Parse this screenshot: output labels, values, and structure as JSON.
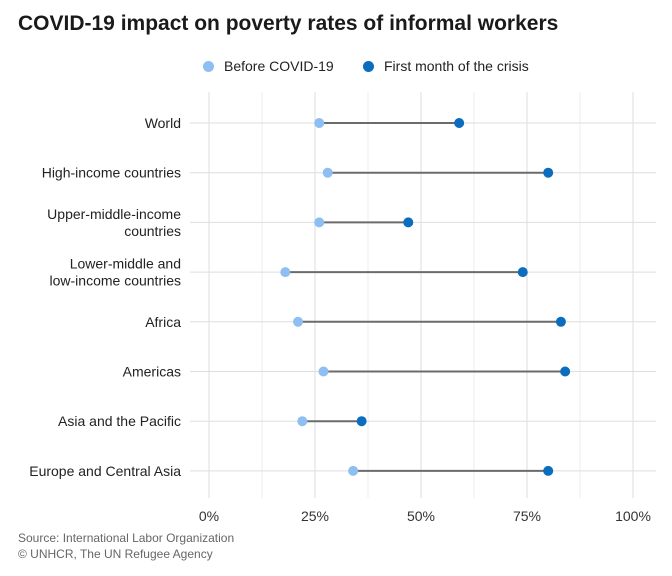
{
  "title": "COVID-19 impact on poverty rates of informal workers",
  "footer": {
    "source": "Source: International Labor Organization",
    "credit": "© UNHCR, The UN Refugee Agency"
  },
  "colors": {
    "before": "#8ebff2",
    "after": "#0a6dbd",
    "connector": "#6b6b6b",
    "grid": "#dedede"
  },
  "chart_data": {
    "type": "dumbbell",
    "title": "COVID-19 impact on poverty rates of informal workers",
    "legend": [
      "Before COVID-19",
      "First month of the crisis"
    ],
    "legend_position": "top",
    "xlim": [
      0,
      100
    ],
    "x_ticks": [
      0,
      25,
      50,
      75,
      100
    ],
    "x_tick_labels": [
      "0%",
      "25%",
      "50%",
      "75%",
      "100%"
    ],
    "categories": [
      "World",
      "High-income countries",
      "Upper-middle-income countries",
      "Lower-middle and low-income countries",
      "Africa",
      "Americas",
      "Asia and the Pacific",
      "Europe and Central Asia"
    ],
    "category_label_lines": [
      [
        "World"
      ],
      [
        "High-income countries"
      ],
      [
        "Upper-middle-income",
        "countries"
      ],
      [
        "Lower-middle and",
        "low-income countries"
      ],
      [
        "Africa"
      ],
      [
        "Americas"
      ],
      [
        "Asia and the Pacific"
      ],
      [
        "Europe and Central Asia"
      ]
    ],
    "series": [
      {
        "name": "Before COVID-19",
        "values": [
          26,
          28,
          26,
          18,
          21,
          27,
          22,
          34
        ]
      },
      {
        "name": "First month of the crisis",
        "values": [
          59,
          80,
          47,
          74,
          83,
          84,
          36,
          80
        ]
      }
    ]
  }
}
